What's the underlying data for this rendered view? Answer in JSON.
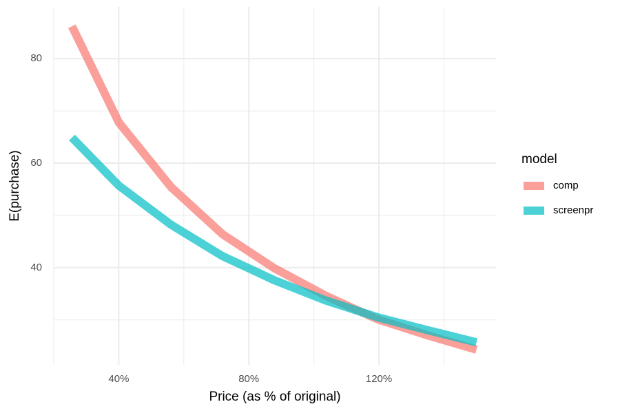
{
  "chart_data": {
    "type": "line",
    "x_label": "Price (as % of original)",
    "y_label": "E(purchase)",
    "x": [
      25.6,
      40,
      56.1,
      71.9,
      87.8,
      103.7,
      119.6,
      135.2,
      150
    ],
    "series": [
      {
        "name": "comp",
        "color": "#f8766d",
        "values": [
          86.2,
          67.8,
          55.4,
          46.4,
          39.9,
          34.6,
          30.1,
          27.0,
          24.3
        ]
      },
      {
        "name": "screenpr",
        "color": "#00bfc4",
        "values": [
          64.9,
          55.7,
          48.2,
          42.2,
          37.6,
          33.7,
          30.5,
          28.0,
          25.7
        ]
      }
    ],
    "xlim": [
      20,
      156
    ],
    "ylim": [
      21.4,
      89.9
    ],
    "xticks": [
      {
        "value": 40,
        "label": "40%"
      },
      {
        "value": 80,
        "label": "80%"
      },
      {
        "value": 120,
        "label": "120%"
      }
    ],
    "yticks": [
      40,
      60,
      80
    ],
    "legend_title": "model",
    "legend": "right",
    "grid": true
  }
}
